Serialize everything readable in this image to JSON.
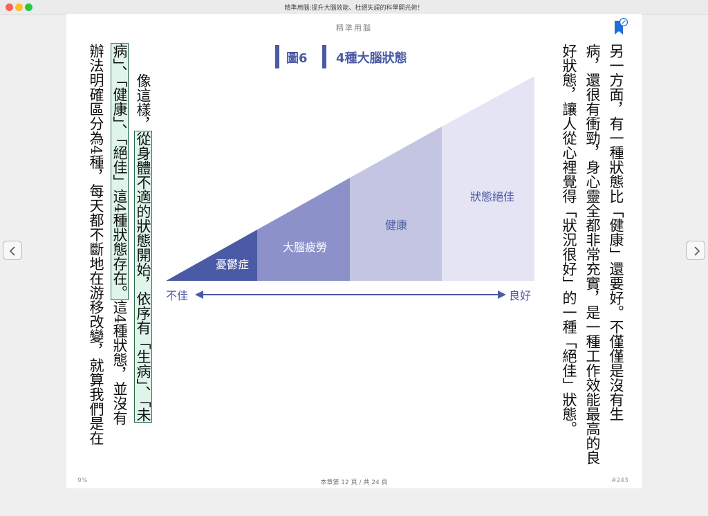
{
  "window": {
    "title": "精準用腦:提升大腦效能、杜絕失誤的科學開光術！"
  },
  "page": {
    "running_head": "精準用腦",
    "right_columns": [
      "另一方面，有一種狀態比「健康」還要好。不僅僅是沒有生",
      "病，還很有衝勁，身心靈全都非常充實，是一種工作效能最高的良",
      "好狀態，讓人從心裡覺得「狀況很好」的一種「絕佳」狀態。"
    ],
    "left_col1_plain": "像這樣，",
    "left_col1_hl": "從身體不適的狀態開始，依序有「生病」、「未",
    "left_col2_hl": "病」、「健康」、「絕佳」這4種狀態存在。",
    "left_col2_plain": "這4種狀態，並沒有",
    "left_col3": "辦法明確區分為4種，每天都不斷地在游移改變，就算我們是在"
  },
  "figure": {
    "number": "圖6",
    "title": "4種大腦狀態",
    "colors": [
      "#4b5aa5",
      "#8c92c9",
      "#c3c5e3",
      "#e4e4f4"
    ]
  },
  "chart_data": {
    "type": "area",
    "title": "4種大腦狀態",
    "categories": [
      "憂鬱症",
      "大腦疲勞",
      "健康",
      "狀態絕佳"
    ],
    "axis": {
      "left_label": "不佳",
      "right_label": "良好"
    }
  },
  "footer": {
    "progress": "9%",
    "chapter_page": "本章第 12 頁 / 共 24 頁",
    "location": "#243"
  }
}
